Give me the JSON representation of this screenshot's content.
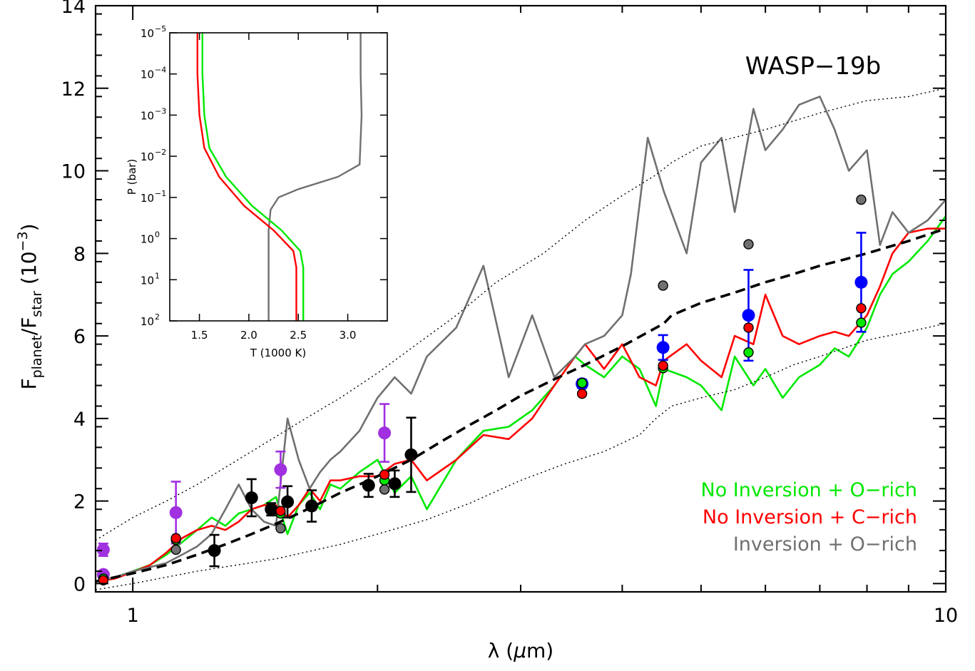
{
  "chart_data": [
    {
      "type": "line",
      "annotation": "WASP−19b",
      "x_scale": "log",
      "xlim": [
        0.9,
        10
      ],
      "ylim": [
        -0.2,
        14
      ],
      "x_ticks": [
        1,
        10
      ],
      "y_ticks": [
        0,
        2,
        4,
        6,
        8,
        10,
        12,
        14
      ],
      "xlabel": "λ (μm)",
      "ylabel": "Fplanet/Fstar (10⁻³)",
      "legend_position": "bottom-right",
      "colors": {
        "green": "#00e800",
        "red": "#ff0000",
        "gray": "#707070",
        "black": "#000000",
        "purple": "#a030e0",
        "blue": "#0000ff"
      },
      "legend": [
        {
          "label": "No Inversion + O−rich",
          "color": "#00e800"
        },
        {
          "label": "No Inversion + C−rich",
          "color": "#ff0000"
        },
        {
          "label": "Inversion + O−rich",
          "color": "#707070"
        }
      ],
      "series": [
        {
          "key": "no_inversion_o_rich",
          "color": "#00e800",
          "x": [
            0.9,
            0.95,
            1.0,
            1.05,
            1.1,
            1.15,
            1.2,
            1.25,
            1.3,
            1.35,
            1.4,
            1.45,
            1.5,
            1.55,
            1.6,
            1.65,
            1.7,
            1.75,
            1.8,
            1.9,
            2.0,
            2.1,
            2.2,
            2.3,
            2.5,
            2.7,
            2.9,
            3.1,
            3.3,
            3.5,
            3.6,
            3.8,
            4.0,
            4.2,
            4.4,
            4.5,
            4.8,
            5.0,
            5.3,
            5.5,
            5.8,
            6.0,
            6.3,
            6.6,
            7.0,
            7.3,
            7.6,
            8.0,
            8.3,
            8.6,
            9.0,
            9.5,
            10.0
          ],
          "y": [
            0.05,
            0.15,
            0.3,
            0.45,
            0.7,
            1.0,
            1.3,
            1.6,
            1.4,
            1.7,
            1.8,
            1.9,
            2.1,
            1.2,
            1.9,
            2.2,
            1.8,
            2.4,
            2.3,
            2.7,
            3.0,
            2.2,
            2.6,
            1.8,
            3.0,
            3.7,
            3.8,
            4.2,
            4.8,
            5.5,
            5.3,
            5.0,
            5.5,
            5.2,
            4.3,
            5.2,
            5.0,
            4.8,
            4.2,
            5.5,
            4.8,
            5.2,
            4.5,
            5.0,
            5.3,
            5.7,
            5.5,
            6.2,
            7.0,
            7.5,
            7.8,
            8.3,
            8.9
          ]
        },
        {
          "key": "no_inversion_c_rich",
          "color": "#ff0000",
          "x": [
            0.9,
            0.95,
            1.0,
            1.05,
            1.1,
            1.15,
            1.2,
            1.25,
            1.3,
            1.35,
            1.4,
            1.45,
            1.5,
            1.55,
            1.6,
            1.65,
            1.7,
            1.75,
            1.8,
            1.9,
            2.0,
            2.1,
            2.2,
            2.3,
            2.5,
            2.7,
            2.9,
            3.1,
            3.3,
            3.5,
            3.6,
            3.8,
            4.0,
            4.2,
            4.4,
            4.5,
            4.8,
            5.0,
            5.3,
            5.5,
            5.8,
            6.0,
            6.3,
            6.6,
            7.0,
            7.3,
            7.6,
            8.0,
            8.3,
            8.6,
            9.0,
            9.5,
            10.0
          ],
          "y": [
            0.05,
            0.12,
            0.28,
            0.45,
            0.75,
            1.1,
            1.3,
            1.4,
            1.3,
            1.5,
            1.8,
            1.9,
            1.9,
            1.6,
            1.9,
            2.3,
            2.0,
            2.5,
            2.5,
            2.6,
            2.6,
            2.9,
            3.0,
            2.5,
            3.0,
            3.6,
            3.5,
            4.0,
            4.8,
            5.5,
            5.8,
            5.2,
            5.8,
            5.0,
            4.8,
            5.4,
            5.8,
            5.4,
            5.0,
            6.0,
            5.8,
            7.0,
            6.0,
            5.8,
            6.0,
            6.1,
            6.0,
            6.5,
            7.2,
            8.0,
            8.5,
            8.6,
            8.6
          ]
        },
        {
          "key": "inversion_o_rich",
          "color": "#707070",
          "x": [
            0.9,
            0.95,
            1.0,
            1.05,
            1.1,
            1.15,
            1.2,
            1.25,
            1.3,
            1.35,
            1.4,
            1.45,
            1.5,
            1.55,
            1.6,
            1.65,
            1.7,
            1.75,
            1.8,
            1.9,
            2.0,
            2.1,
            2.2,
            2.3,
            2.5,
            2.7,
            2.9,
            3.1,
            3.3,
            3.5,
            3.6,
            3.8,
            4.0,
            4.1,
            4.3,
            4.5,
            4.8,
            5.0,
            5.3,
            5.5,
            5.8,
            6.0,
            6.3,
            6.6,
            7.0,
            7.3,
            7.6,
            8.0,
            8.3,
            8.6,
            9.0,
            9.5,
            10.0
          ],
          "y": [
            0.05,
            0.15,
            0.3,
            0.4,
            0.5,
            0.7,
            0.9,
            1.2,
            1.8,
            2.4,
            1.8,
            1.5,
            1.4,
            4.0,
            3.0,
            2.3,
            2.7,
            3.0,
            3.2,
            3.7,
            4.5,
            5.0,
            4.6,
            5.5,
            6.2,
            7.7,
            5.0,
            6.5,
            5.0,
            5.5,
            5.8,
            6.0,
            6.5,
            7.5,
            10.8,
            9.5,
            8.0,
            10.2,
            10.8,
            9.0,
            11.5,
            10.5,
            11.0,
            11.6,
            11.8,
            11.0,
            10.0,
            10.5,
            8.2,
            9.0,
            8.5,
            8.8,
            9.3
          ]
        },
        {
          "key": "blackbody",
          "color": "#000000",
          "style": "dashed",
          "x": [
            0.9,
            1.0,
            1.1,
            1.2,
            1.3,
            1.4,
            1.5,
            1.6,
            1.7,
            1.8,
            1.9,
            2.0,
            2.2,
            2.4,
            2.6,
            2.8,
            3.0,
            3.3,
            3.6,
            4.0,
            4.5,
            4.6,
            5.0,
            5.5,
            6.0,
            6.5,
            7.0,
            7.5,
            8.0,
            9.0,
            10.0
          ],
          "y": [
            0.05,
            0.25,
            0.45,
            0.7,
            0.95,
            1.2,
            1.45,
            1.7,
            1.95,
            2.2,
            2.4,
            2.6,
            3.0,
            3.45,
            3.85,
            4.2,
            4.55,
            4.95,
            5.3,
            5.75,
            6.3,
            6.5,
            6.8,
            7.05,
            7.3,
            7.5,
            7.7,
            7.85,
            8.0,
            8.3,
            8.6
          ]
        },
        {
          "key": "upper_envelope",
          "color": "#000000",
          "style": "dotted",
          "x": [
            0.9,
            1.0,
            1.1,
            1.2,
            1.4,
            1.6,
            1.8,
            2.0,
            2.2,
            2.5,
            2.8,
            3.2,
            3.6,
            4.0,
            4.4,
            4.6,
            5.0,
            6.0,
            7.0,
            8.0,
            9.0,
            10.0
          ],
          "y": [
            1.05,
            1.6,
            2.0,
            2.4,
            3.2,
            3.9,
            4.5,
            5.1,
            5.7,
            6.5,
            7.3,
            8.0,
            8.8,
            9.4,
            9.9,
            10.2,
            10.6,
            11.0,
            11.4,
            11.7,
            11.8,
            12.0
          ]
        },
        {
          "key": "lower_envelope",
          "color": "#000000",
          "style": "dotted",
          "x": [
            0.9,
            1.0,
            1.2,
            1.5,
            1.8,
            2.0,
            2.3,
            2.6,
            3.0,
            3.4,
            3.8,
            4.2,
            4.4,
            4.6,
            5.0,
            5.5,
            6.0,
            6.5,
            7.0,
            8.0,
            9.0,
            10.0
          ],
          "y": [
            -0.15,
            0.0,
            0.3,
            0.6,
            0.95,
            1.2,
            1.55,
            1.95,
            2.5,
            2.9,
            3.2,
            3.6,
            4.0,
            4.3,
            4.5,
            4.7,
            5.0,
            5.3,
            5.5,
            5.9,
            6.1,
            6.3
          ]
        }
      ],
      "points": [
        {
          "key": "observed",
          "color": "#000000",
          "x": [
            1.26,
            1.4,
            1.48,
            1.55,
            1.66,
            1.95,
            2.1,
            2.2
          ],
          "y": [
            0.8,
            2.08,
            1.8,
            1.98,
            1.88,
            2.38,
            2.42,
            3.12
          ],
          "err": [
            0.38,
            0.45,
            0.15,
            0.38,
            0.38,
            0.28,
            0.32,
            0.9
          ]
        },
        {
          "key": "purple",
          "color": "#a030e0",
          "x": [
            0.92,
            1.13,
            1.52,
            2.04
          ],
          "y": [
            0.82,
            1.72,
            2.76,
            3.65
          ],
          "err": [
            0.15,
            0.75,
            0.44,
            0.7
          ]
        },
        {
          "key": "blue",
          "color": "#0000ff",
          "x": [
            3.57,
            4.49,
            5.72,
            7.87
          ],
          "y": [
            4.84,
            5.72,
            6.5,
            7.3
          ],
          "err": [
            0.1,
            0.3,
            1.1,
            1.2
          ]
        },
        {
          "key": "ghost",
          "color": "#a030e0",
          "x": [
            0.92
          ],
          "y": [
            0.22
          ],
          "err": [
            0.0
          ]
        }
      ],
      "model_points": [
        {
          "key": "green_points",
          "color": "#00e800",
          "x": [
            0.92,
            1.13,
            1.52,
            2.04,
            3.57,
            4.49,
            5.72,
            7.87
          ],
          "y": [
            0.12,
            1.06,
            1.7,
            2.5,
            4.86,
            5.22,
            5.6,
            6.32
          ]
        },
        {
          "key": "red_points",
          "color": "#ff0000",
          "x": [
            0.92,
            1.13,
            1.52,
            2.04,
            3.57,
            4.49,
            5.72,
            7.87
          ],
          "y": [
            0.08,
            1.1,
            1.76,
            2.64,
            4.6,
            5.28,
            6.2,
            6.67
          ]
        },
        {
          "key": "gray_points",
          "color": "#707070",
          "x": [
            1.13,
            1.52,
            2.04,
            4.49,
            5.72,
            7.87
          ],
          "y": [
            0.82,
            1.34,
            2.28,
            7.22,
            8.22,
            9.3
          ]
        }
      ]
    },
    {
      "type": "line",
      "name": "inset",
      "xlabel": "T (1000 K)",
      "ylabel": "P (bar)",
      "xlim": [
        1.2,
        3.4
      ],
      "ylim_log10_pressure": [
        -5,
        2
      ],
      "x_ticks": [
        1.5,
        2.0,
        2.5,
        3.0
      ],
      "x_tick_labels": [
        "1.5",
        "2.0",
        "2.5",
        "3.0"
      ],
      "y_ticks": [
        -5,
        -4,
        -3,
        -2,
        -1,
        0,
        1,
        2
      ],
      "y_tick_labels": [
        {
          "base": "10",
          "exp": "−5"
        },
        {
          "base": "10",
          "exp": "−4"
        },
        {
          "base": "10",
          "exp": "−3"
        },
        {
          "base": "10",
          "exp": "−2"
        },
        {
          "base": "10",
          "exp": "−1"
        },
        {
          "base": "10",
          "exp": "0"
        },
        {
          "base": "10",
          "exp": "1"
        },
        {
          "base": "10",
          "exp": "2"
        }
      ],
      "series": [
        {
          "key": "profile_gray",
          "color": "#707070",
          "t": [
            3.13,
            3.13,
            3.14,
            3.12,
            2.9,
            2.5,
            2.3,
            2.22,
            2.2,
            2.2,
            2.2
          ],
          "logp": [
            -5,
            -4,
            -3,
            -1.8,
            -1.5,
            -1.2,
            -1.0,
            -0.7,
            -0.2,
            0.5,
            2
          ]
        },
        {
          "key": "profile_red",
          "color": "#ff0000",
          "t": [
            1.48,
            1.48,
            1.5,
            1.55,
            1.7,
            1.95,
            2.25,
            2.45,
            2.48,
            2.48,
            2.48
          ],
          "logp": [
            -5,
            -4,
            -3,
            -2.2,
            -1.5,
            -0.8,
            -0.2,
            0.3,
            0.7,
            1.2,
            2
          ]
        },
        {
          "key": "profile_green",
          "color": "#00e800",
          "t": [
            1.53,
            1.53,
            1.55,
            1.6,
            1.77,
            2.03,
            2.33,
            2.52,
            2.55,
            2.55,
            2.55
          ],
          "logp": [
            -5,
            -4,
            -3,
            -2.2,
            -1.5,
            -0.8,
            -0.2,
            0.3,
            0.7,
            1.2,
            2
          ]
        }
      ]
    }
  ]
}
